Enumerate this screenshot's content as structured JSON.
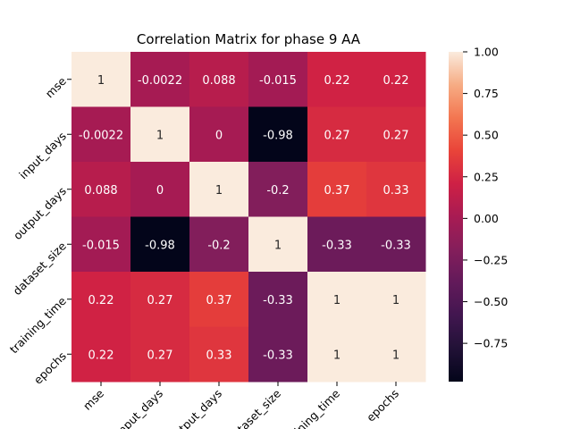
{
  "chart_data": {
    "type": "heatmap",
    "title": "Correlation Matrix for phase 9 AA",
    "xlabel": "",
    "ylabel": "",
    "row_labels": [
      "mse",
      "input_days",
      "output_days",
      "dataset_size",
      "training_time",
      "epochs"
    ],
    "col_labels": [
      "mse",
      "input_days",
      "output_days",
      "dataset_size",
      "training_time",
      "epochs"
    ],
    "values": [
      [
        1,
        -0.0022,
        0.088,
        -0.015,
        0.22,
        0.22
      ],
      [
        -0.0022,
        1,
        0,
        -0.98,
        0.27,
        0.27
      ],
      [
        0.088,
        0,
        1,
        -0.2,
        0.37,
        0.33
      ],
      [
        -0.015,
        -0.98,
        -0.2,
        1,
        -0.33,
        -0.33
      ],
      [
        0.22,
        0.27,
        0.37,
        -0.33,
        1,
        1
      ],
      [
        0.22,
        0.27,
        0.33,
        -0.33,
        1,
        1
      ]
    ],
    "cell_labels": [
      [
        "1",
        "-0.0022",
        "0.088",
        "-0.015",
        "0.22",
        "0.22"
      ],
      [
        "-0.0022",
        "1",
        "0",
        "-0.98",
        "0.27",
        "0.27"
      ],
      [
        "0.088",
        "0",
        "1",
        "-0.2",
        "0.37",
        "0.33"
      ],
      [
        "-0.015",
        "-0.98",
        "-0.2",
        "1",
        "-0.33",
        "-0.33"
      ],
      [
        "0.22",
        "0.27",
        "0.37",
        "-0.33",
        "1",
        "1"
      ],
      [
        "0.22",
        "0.27",
        "0.33",
        "-0.33",
        "1",
        "1"
      ]
    ],
    "colorbar": {
      "range": [
        -0.98,
        1.0
      ],
      "ticks": [
        1.0,
        0.75,
        0.5,
        0.25,
        0.0,
        -0.25,
        -0.5,
        -0.75
      ],
      "tick_labels": [
        "1.00",
        "0.75",
        "0.50",
        "0.25",
        "0.00",
        "−0.25",
        "−0.50",
        "−0.75"
      ]
    },
    "colormap": "rocket",
    "grid": false
  }
}
